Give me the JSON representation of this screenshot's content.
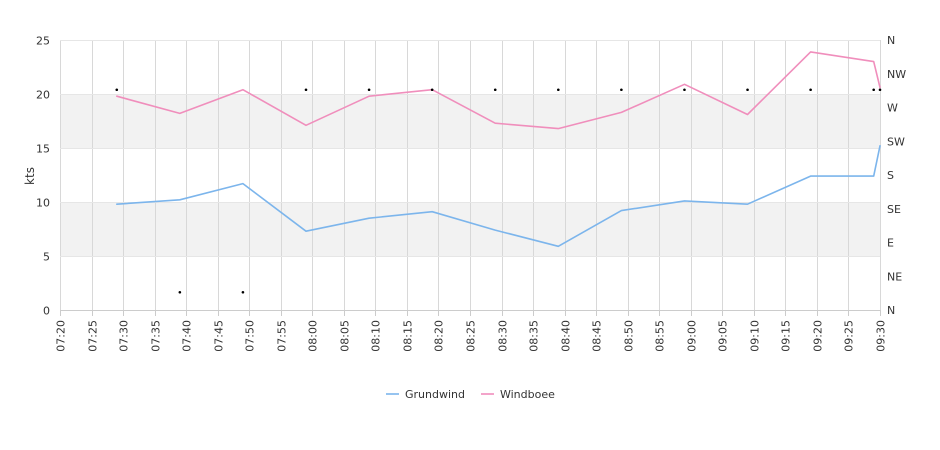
{
  "chart_data": {
    "type": "line",
    "ylabel": "kts",
    "ylim": [
      0,
      25
    ],
    "y_ticks": [
      "0",
      "5",
      "10",
      "15",
      "20",
      "25"
    ],
    "direction_ticks": [
      "N",
      "NE",
      "E",
      "SE",
      "S",
      "SW",
      "W",
      "NW",
      "N"
    ],
    "x_ticks": [
      "07:20",
      "07:25",
      "07:30",
      "07:35",
      "07:40",
      "07:45",
      "07:50",
      "07:55",
      "08:00",
      "08:05",
      "08:10",
      "08:15",
      "08:20",
      "08:25",
      "08:30",
      "08:35",
      "08:40",
      "08:45",
      "08:50",
      "08:55",
      "09:00",
      "09:05",
      "09:10",
      "09:15",
      "09:20",
      "09:25",
      "09:30"
    ],
    "xlim": [
      "07:20",
      "09:30"
    ],
    "band_stripes": true,
    "legend_position": "bottom-center",
    "series": [
      {
        "name": "Grundwind",
        "color": "#7cb5ec",
        "x": [
          "07:29",
          "07:39",
          "07:49",
          "07:59",
          "08:09",
          "08:19",
          "08:29",
          "08:39",
          "08:49",
          "08:59",
          "09:09",
          "09:19",
          "09:29",
          "09:30"
        ],
        "values": [
          9.8,
          10.2,
          11.7,
          7.3,
          8.5,
          9.1,
          7.4,
          5.9,
          9.2,
          10.1,
          9.8,
          12.4,
          12.4,
          15.2
        ]
      },
      {
        "name": "Windboee",
        "color": "#f08ebc",
        "x": [
          "07:29",
          "07:39",
          "07:49",
          "07:59",
          "08:09",
          "08:19",
          "08:29",
          "08:39",
          "08:49",
          "08:59",
          "09:09",
          "09:19",
          "09:29",
          "09:30"
        ],
        "values": [
          19.8,
          18.2,
          20.4,
          17.1,
          19.8,
          20.4,
          17.3,
          16.8,
          18.3,
          20.9,
          18.1,
          23.9,
          23.0,
          20.6
        ]
      }
    ],
    "direction_points": {
      "x": [
        "07:29",
        "07:39",
        "07:49",
        "07:59",
        "08:09",
        "08:19",
        "08:29",
        "08:39",
        "08:49",
        "08:59",
        "09:09",
        "09:19",
        "09:29",
        "09:30"
      ],
      "direction": [
        "NW",
        "NE",
        "NE",
        "NW",
        "NW",
        "NW",
        "NW",
        "NW",
        "NW",
        "NW",
        "NW",
        "NW",
        "NW",
        "NW"
      ]
    }
  }
}
